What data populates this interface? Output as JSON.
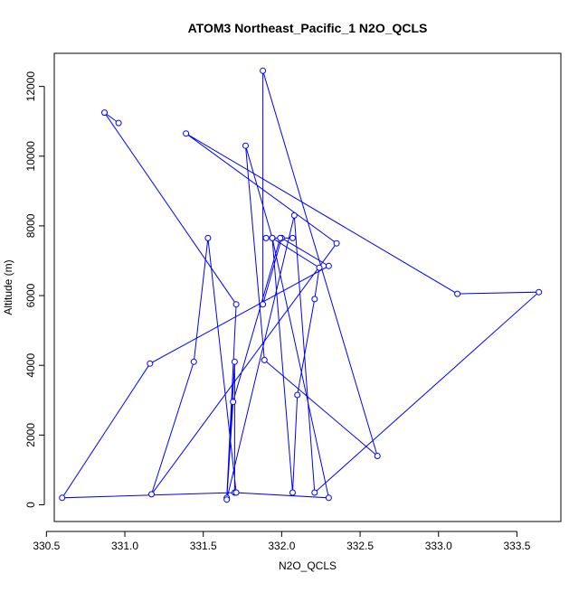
{
  "chart_data": {
    "type": "line",
    "title": "ATOM3 Northeast_Pacific_1 N2O_QCLS",
    "xlabel": "N2O_QCLS",
    "ylabel": "Altitude (m)",
    "xlim": [
      330.55,
      333.78
    ],
    "ylim": [
      -480,
      12950
    ],
    "xticks": [
      330.5,
      331.0,
      331.5,
      332.0,
      332.5,
      333.0,
      333.5
    ],
    "xtick_labels": [
      "330.5",
      "331.0",
      "331.5",
      "332.0",
      "332.5",
      "333.0",
      "333.5"
    ],
    "yticks": [
      0,
      2000,
      4000,
      6000,
      8000,
      10000,
      12000
    ],
    "ytick_labels": [
      "0",
      "2000",
      "4000",
      "6000",
      "8000",
      "10000",
      "12000"
    ],
    "grid": false,
    "series": [
      {
        "color": "#0000ff",
        "x": [
          330.96,
          330.87,
          331.71,
          331.65,
          331.7,
          331.7,
          332.3,
          331.94,
          332.07,
          332.1,
          332.21,
          332.24,
          331.94,
          331.77,
          331.89,
          332.61,
          331.88,
          331.88,
          332.0,
          332.3,
          331.16,
          330.6,
          331.71,
          331.53,
          331.44,
          331.17,
          332.35,
          331.39,
          333.12,
          333.64,
          332.21,
          332.08,
          331.65,
          331.69,
          331.99,
          332.07,
          331.9
        ],
        "y": [
          10950,
          11250,
          5750,
          200,
          4100,
          350,
          200,
          7650,
          350,
          3150,
          5900,
          6800,
          7650,
          10300,
          4150,
          1400,
          12450,
          5750,
          7650,
          6850,
          4050,
          200,
          350,
          7650,
          4100,
          300,
          7500,
          10650,
          6050,
          6100,
          350,
          8300,
          150,
          2950,
          7650,
          7650,
          7650
        ]
      }
    ]
  }
}
